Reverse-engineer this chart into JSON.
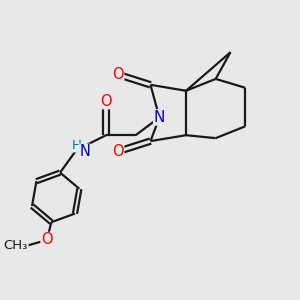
{
  "bg_color": "#e8e8e8",
  "bond_color": "#1a1a1a",
  "N_color": "#0000cd",
  "O_color": "#ff0000",
  "H_color": "#008080",
  "line_width": 1.6,
  "font_size": 10.5,
  "figsize": [
    3.0,
    3.0
  ],
  "dpi": 100,
  "xlim": [
    0,
    10
  ],
  "ylim": [
    0,
    10
  ]
}
